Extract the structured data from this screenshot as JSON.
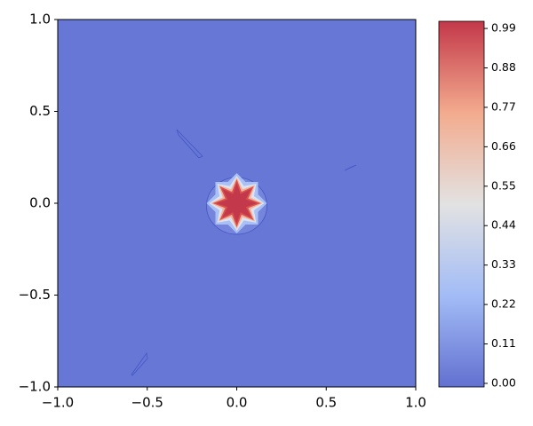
{
  "chart_data": {
    "type": "contour",
    "colormap": "coolwarm",
    "xlim": [
      -1,
      1
    ],
    "ylim": [
      -1,
      1
    ],
    "xticks": [
      {
        "value": -1,
        "label": "−1.0"
      },
      {
        "value": -0.5,
        "label": "−0.5"
      },
      {
        "value": 0,
        "label": "0.0"
      },
      0.5,
      {
        "value": 1,
        "label": "1.0"
      }
    ],
    "yticks": [
      {
        "value": -1,
        "label": "−1.0"
      },
      {
        "value": -0.5,
        "label": "−0.5"
      },
      {
        "value": 0,
        "label": "0.0"
      },
      0.5,
      {
        "value": 1,
        "label": "1.0"
      }
    ],
    "colorbar": {
      "lim": [
        -0.01,
        1.01
      ],
      "ticks": [
        {
          "value": 0,
          "label": "0.00"
        },
        0.11,
        0.22,
        0.33,
        0.44,
        0.55,
        0.66,
        0.77,
        0.88,
        0.99
      ]
    }
  }
}
